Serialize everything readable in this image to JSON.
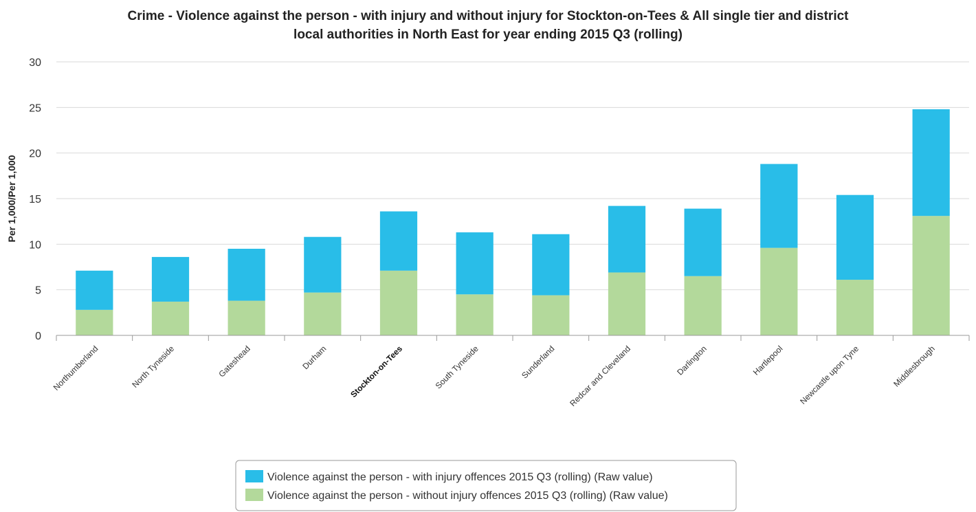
{
  "chart_data": {
    "type": "bar",
    "stacked": true,
    "title_lines": [
      "Crime - Violence against the person - with injury and without injury for Stockton-on-Tees & All single tier and district",
      "local authorities in North East for year ending 2015 Q3 (rolling)"
    ],
    "ylabel": "Per 1,000/Per 1,000",
    "xlabel": "",
    "ylim": [
      0,
      30
    ],
    "yticks": [
      "0",
      "5",
      "10",
      "15",
      "20",
      "25",
      "30"
    ],
    "grid": true,
    "legend_position": "bottom",
    "highlight_category": "Stockton-on-Tees",
    "categories": [
      "Northumberland",
      "North Tyneside",
      "Gateshead",
      "Durham",
      "Stockton-on-Tees",
      "South Tyneside",
      "Sunderland",
      "Redcar and Cleveland",
      "Darlington",
      "Hartlepool",
      "Newcastle upon Tyne",
      "Middlesbrough"
    ],
    "series": [
      {
        "name": "Violence against the person - without injury offences 2015 Q3 (rolling) (Raw value)",
        "color": "#b3d99b",
        "values": [
          2.8,
          3.7,
          3.8,
          4.7,
          7.1,
          4.5,
          4.4,
          6.9,
          6.5,
          9.6,
          6.1,
          13.1
        ]
      },
      {
        "name": "Violence against the person - with injury offences 2015 Q3 (rolling) (Raw value)",
        "color": "#29bde8",
        "values": [
          4.3,
          4.9,
          5.7,
          6.1,
          6.5,
          6.8,
          6.7,
          7.3,
          7.4,
          9.2,
          9.3,
          11.7
        ]
      }
    ],
    "legend_order": [
      1,
      0
    ]
  }
}
